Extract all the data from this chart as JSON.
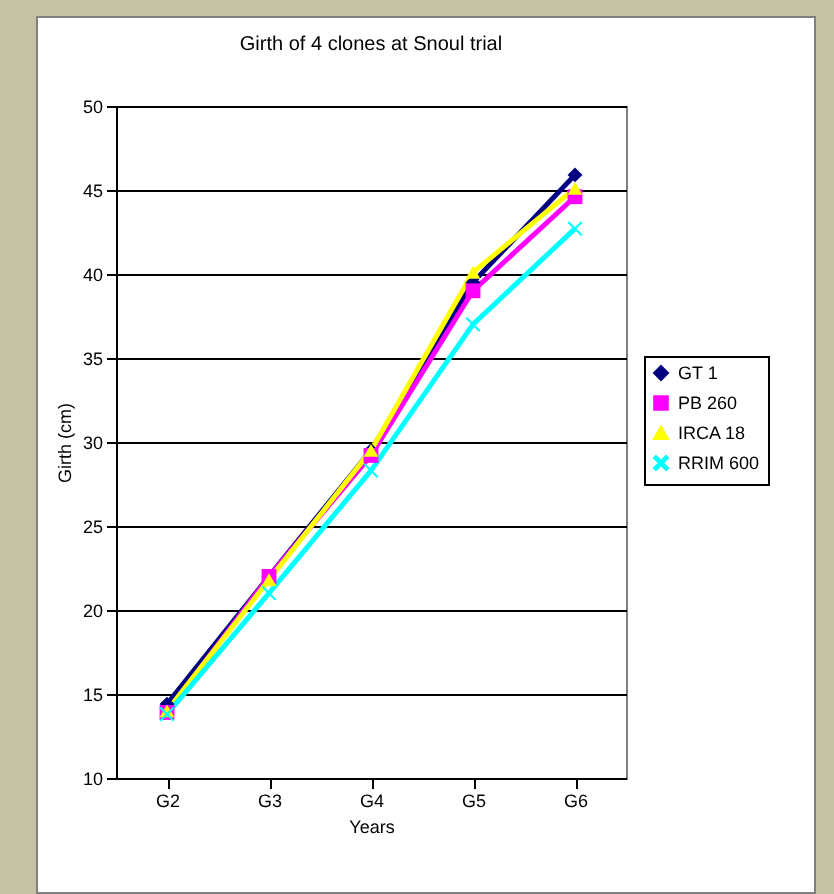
{
  "chart_data": {
    "type": "line",
    "title": "Girth of 4 clones at Snoul trial",
    "xlabel": "Years",
    "ylabel": "Girth (cm)",
    "categories": [
      "G2",
      "G3",
      "G4",
      "G5",
      "G6"
    ],
    "series": [
      {
        "name": "GT 1",
        "color": "#000080",
        "marker": "diamond",
        "values": [
          14.4,
          22,
          29.5,
          39.5,
          45.9
        ]
      },
      {
        "name": "PB 260",
        "color": "#ff00ff",
        "marker": "square",
        "values": [
          13.9,
          22,
          29.2,
          39,
          44.6
        ]
      },
      {
        "name": "IRCA 18",
        "color": "#ffff00",
        "marker": "triangle",
        "values": [
          14,
          21.8,
          29.5,
          40.1,
          45.1
        ]
      },
      {
        "name": "RRIM 600",
        "color": "#00ffff",
        "marker": "cross",
        "values": [
          13.8,
          21,
          28.3,
          37,
          42.7
        ]
      }
    ],
    "ylim": [
      10,
      50
    ],
    "yticks": [
      10,
      15,
      20,
      25,
      30,
      35,
      40,
      45,
      50
    ],
    "grid": "y",
    "legend": "right"
  }
}
